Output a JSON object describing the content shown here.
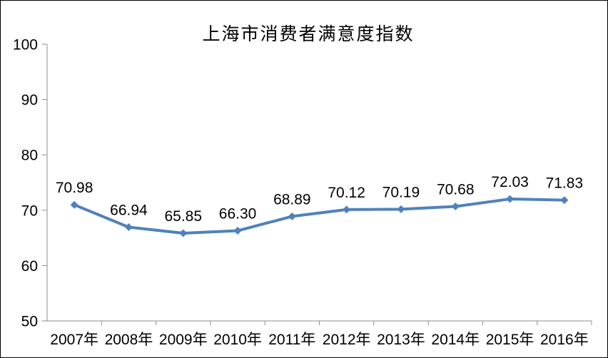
{
  "window": {
    "background_color": "#ffffff",
    "border_color": "#000000"
  },
  "chart_data": {
    "type": "line",
    "title": "上海市消费者满意度指数",
    "categories": [
      "2007年",
      "2008年",
      "2009年",
      "2010年",
      "2011年",
      "2012年",
      "2013年",
      "2014年",
      "2015年",
      "2016年"
    ],
    "series": [
      {
        "values": [
          70.98,
          66.94,
          65.85,
          66.3,
          68.89,
          70.12,
          70.19,
          70.68,
          72.03,
          71.83
        ],
        "point_labels": [
          "70.98",
          "66.94",
          "65.85",
          "66.30",
          "68.89",
          "70.12",
          "70.19",
          "70.68",
          "72.03",
          "71.83"
        ]
      }
    ],
    "xlabel": "",
    "ylabel": "",
    "ylim": [
      50,
      100
    ],
    "yticks": [
      50,
      60,
      70,
      80,
      90,
      100
    ],
    "ytick_labels": [
      "50",
      "60",
      "70",
      "80",
      "90",
      "100"
    ],
    "grid": false,
    "legend_position": "none",
    "marker_shape": "diamond",
    "colors": {
      "line": "#4F81BD",
      "marker": "#4F81BD",
      "axis": "#8C8C8C",
      "text": "#000000"
    }
  }
}
